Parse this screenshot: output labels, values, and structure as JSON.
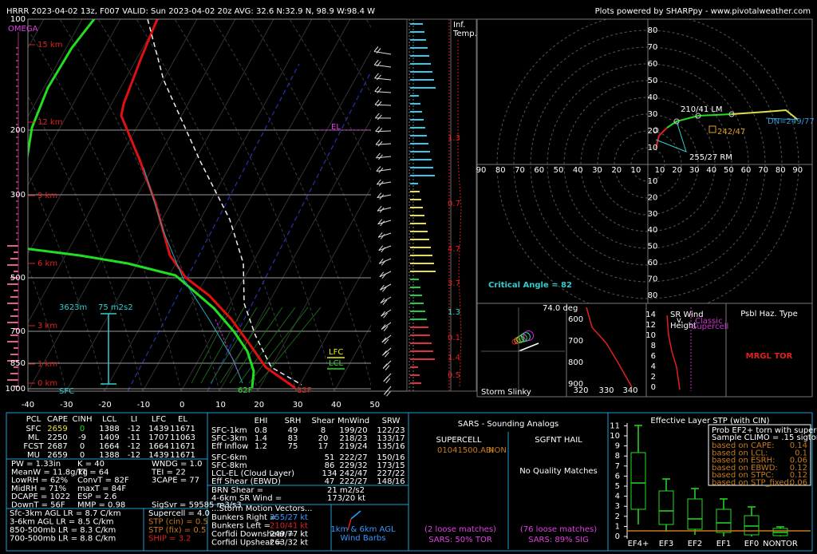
{
  "header": {
    "title": "HRRR 2023-04-02 13z, F007  VALID: Sun 2023-04-02 20z  AVG: 32.6 N:32.9 N, 98.9 W:98.4 W",
    "credit": "Plots powered by SHARPpy - www.pivotalweather.com"
  },
  "skewt": {
    "pressure_labels": [
      "100",
      "200",
      "300",
      "500",
      "700",
      "850",
      "1000"
    ],
    "height_labels": [
      "15 km",
      "12 km",
      "9 km",
      "6 km",
      "3 km",
      "1 km",
      "0 km"
    ],
    "temp_labels": [
      "-40",
      "-30",
      "-20",
      "-10",
      "0",
      "10",
      "20",
      "30",
      "40",
      "50"
    ],
    "omega": "OMEGA",
    "el": "EL",
    "lfc": "LFC",
    "lcl": "LCL",
    "sfc_td": "62F",
    "sfc_t": "82F",
    "eff_top": "3623m",
    "eff_srh": "75 m2s2",
    "eff_base": "SFC"
  },
  "inferred_temp": {
    "title": [
      "Inf.",
      "Temp."
    ],
    "values": [
      "1.3",
      "0.7",
      "4.7",
      "3.7",
      "1.3",
      "0.1",
      "1.4",
      "0.5"
    ]
  },
  "hodograph": {
    "axis_left": [
      "90",
      "80",
      "70",
      "60",
      "50",
      "40",
      "30",
      "20",
      "10"
    ],
    "axis_right": [
      "10",
      "20",
      "30",
      "40",
      "50",
      "60",
      "70",
      "80",
      "90"
    ],
    "axis_up": [
      "80",
      "70",
      "60",
      "50",
      "40",
      "30",
      "20",
      "10"
    ],
    "axis_down": [
      "10",
      "20",
      "30",
      "40",
      "50",
      "60",
      "70",
      "80"
    ],
    "left_mover": "210/41 LM",
    "cloud_layer": "242/47",
    "downshear": "DN=249/77",
    "right_mover": "255/27 RM",
    "critical_angle": "Critical Angle = 82"
  },
  "slinky": {
    "angle": "74.0 deg",
    "title": "Storm Slinky"
  },
  "theta_panel": {
    "yticks": [
      "600",
      "700",
      "800",
      "900"
    ],
    "xticks": [
      "320",
      "330",
      "340"
    ]
  },
  "sr_panel": {
    "title": [
      "SR Wind",
      "v.",
      "Height"
    ],
    "note": [
      "Classic",
      "Supercell"
    ],
    "yticks": [
      "14",
      "12",
      "10",
      "8",
      "6",
      "4",
      "2",
      "0"
    ]
  },
  "hazard": {
    "title": "Psbl Haz. Type",
    "value": "MRGL TOR"
  },
  "thermo": {
    "headers": [
      "PCL",
      "CAPE",
      "CINH",
      "LCL",
      "LI",
      "LFC",
      "EL"
    ],
    "rows": [
      [
        "SFC",
        "2659",
        "0",
        "1388",
        "-12",
        "1439",
        "11671"
      ],
      [
        "ML",
        "2250",
        "-9",
        "1409",
        "-11",
        "1707",
        "11063"
      ],
      [
        "FCST",
        "2687",
        "0",
        "1664",
        "-12",
        "1664",
        "11671"
      ],
      [
        "MU",
        "2659",
        "0",
        "1388",
        "-12",
        "1439",
        "11671"
      ]
    ],
    "indices": [
      [
        "PW = 1.33in",
        "K = 40",
        "WNDG = 1.0"
      ],
      [
        "MeanW = 11.8g/kg",
        "TT = 64",
        "TEI = 22"
      ],
      [
        "LowRH = 62%",
        "ConvT = 82F",
        "3CAPE = 77"
      ],
      [
        "MidRH = 71%",
        "maxT = 84F"
      ],
      [
        "DCAPE = 1022",
        "ESP = 2.6"
      ],
      [
        "DownT = 56F",
        "MMP = 0.98",
        "SigSvr = 59585 m3/s3"
      ]
    ],
    "lapse": [
      "Sfc-3km AGL LR = 8.7 C/km",
      "3-6km AGL LR = 8.5 C/km",
      "850-500mb LR = 8.3 C/km",
      "700-500mb LR = 8.8 C/km"
    ],
    "severe": [
      "Supercell = 4.0",
      "STP (cin) = 0.5",
      "STP (fix) = 0.5",
      "SHIP = 3.2"
    ]
  },
  "kinematic": {
    "headers": [
      "EHI",
      "SRH",
      "Shear",
      "MnWind",
      "SRW"
    ],
    "rows_a": [
      [
        "SFC-1km",
        "0.8",
        "49",
        "8",
        "199/20",
        "122/23"
      ],
      [
        "SFC-3km",
        "1.4",
        "83",
        "20",
        "218/23",
        "133/17"
      ],
      [
        "Eff Inflow",
        "1.2",
        "75",
        "17",
        "219/24",
        "135/16"
      ]
    ],
    "rows_b": [
      [
        "SFC-6km",
        "51",
        "222/27",
        "150/16"
      ],
      [
        "SFC-8km",
        "86",
        "229/32",
        "173/15"
      ],
      [
        "LCL-EL (Cloud Layer)",
        "134",
        "242/47",
        "227/22"
      ],
      [
        "Eff Shear (EBWD)",
        "47",
        "222/27",
        "148/16"
      ]
    ],
    "shear_lines": [
      [
        "BRN Shear =",
        "21 m2/s2"
      ],
      [
        "4-6km SR Wind =",
        "173/20 kt"
      ]
    ],
    "motion_title": "...Storm Motion Vectors...",
    "motions": [
      [
        "Bunkers Right =",
        "255/27 kt"
      ],
      [
        "Bunkers Left =",
        "210/41 kt"
      ],
      [
        "Corfidi Downshear =",
        "249/77 kt"
      ],
      [
        "Corfidi Upshear =",
        "263/32 kt"
      ]
    ],
    "barb_note": [
      "1km & 6km AGL",
      "Wind Barbs"
    ]
  },
  "sars": {
    "title": "SARS - Sounding Analogs",
    "supercell": "SUPERCELL",
    "hail": "SGFNT HAIL",
    "match": "01041500.ABI",
    "match_type": "NON",
    "hail_none": "No Quality Matches",
    "supercell_loose": "(2 loose matches)",
    "hail_loose": "(76 loose matches)",
    "supercell_result": "SARS: 50% TOR",
    "hail_result": "SARS: 89% SIG"
  },
  "stp": {
    "title": "Effective Layer STP (with CIN)",
    "yticks": [
      "0",
      "1",
      "2",
      "3",
      "4",
      "5",
      "6",
      "7",
      "8",
      "9",
      "10",
      "11"
    ],
    "categories": [
      "EF4+",
      "EF3",
      "EF2",
      "EF1",
      "EF0",
      "NONTOR"
    ],
    "legend_title": [
      "Prob EF2+ torn with supercell",
      "Sample CLIMO = .15 sigtor"
    ],
    "legend": [
      [
        "based on CAPE:",
        "0.14"
      ],
      [
        "based on LCL:",
        "0.1"
      ],
      [
        "based on ESRH:",
        "0.06"
      ],
      [
        "based on EBWD:",
        "0.12"
      ],
      [
        "based on STPC:",
        "0.12"
      ],
      [
        "based on STP_fixed:",
        "0.06"
      ]
    ]
  }
}
